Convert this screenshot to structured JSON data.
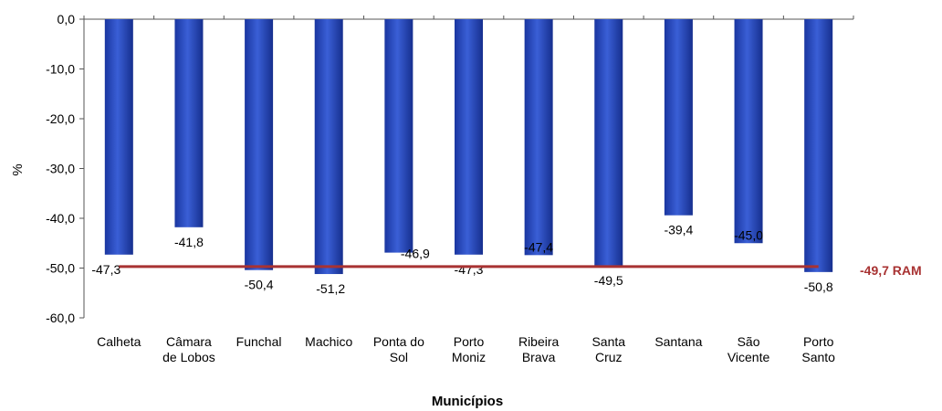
{
  "chart_data": {
    "type": "bar",
    "categories": [
      [
        "Calheta"
      ],
      [
        "Câmara",
        "de Lobos"
      ],
      [
        "Funchal"
      ],
      [
        "Machico"
      ],
      [
        "Ponta do",
        "Sol"
      ],
      [
        "Porto",
        "Moniz"
      ],
      [
        "Ribeira",
        "Brava"
      ],
      [
        "Santa",
        "Cruz"
      ],
      [
        "Santana"
      ],
      [
        "São",
        "Vicente"
      ],
      [
        "Porto",
        "Santo"
      ]
    ],
    "values": [
      -47.3,
      -41.8,
      -50.4,
      -51.2,
      -46.9,
      -47.3,
      -47.4,
      -49.5,
      -39.4,
      -45.0,
      -50.8
    ],
    "value_labels": [
      "-47,3",
      "-41,8",
      "-50,4",
      "-51,2",
      "-46,9",
      "-47,3",
      "-47,4",
      "-49,5",
      "-39,4",
      "-45,0",
      "-50,8"
    ],
    "ylim": [
      -60,
      0
    ],
    "yticks": [
      0,
      -10,
      -20,
      -30,
      -40,
      -50,
      -60
    ],
    "ytick_labels": [
      "0,0",
      "-10,0",
      "-20,0",
      "-30,0",
      "-40,0",
      "-50,0",
      "-60,0"
    ],
    "ylabel": "%",
    "xlabel": "Municípios",
    "reference_line": {
      "value": -49.7,
      "label": "-49,7 RAM",
      "color": "#a83232"
    },
    "bar_color": "#2347b8",
    "grid": false
  }
}
